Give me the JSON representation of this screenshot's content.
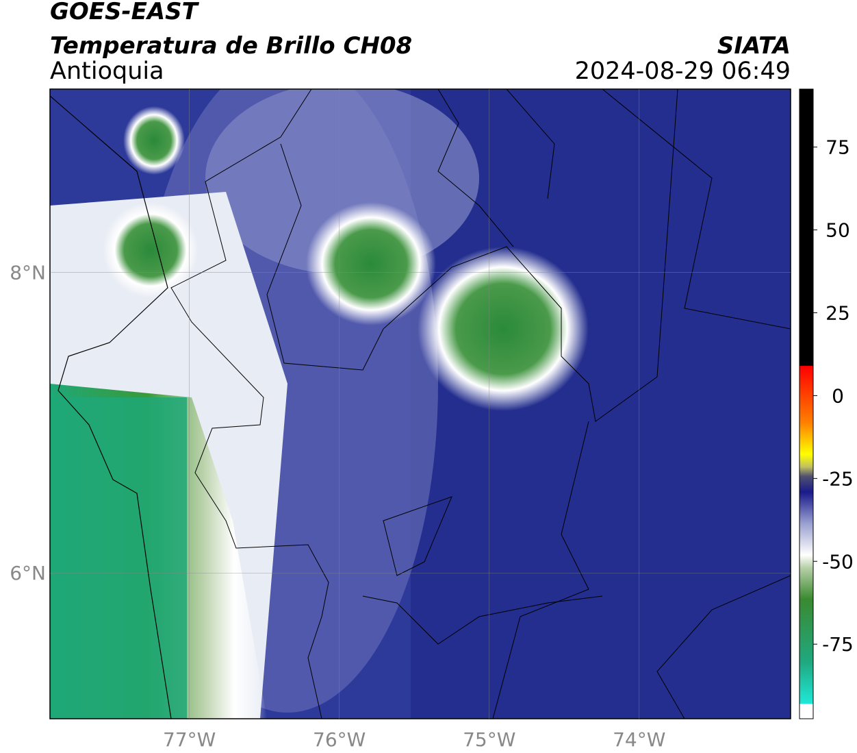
{
  "chart_data": {
    "type": "map",
    "title": "GOES-EAST",
    "subtitle": "Temperatura de Brillo CH08",
    "region": "Antioquia",
    "source": "SIATA",
    "datetime": "2024-08-29 06:49",
    "xlim": [
      -77.93,
      -72.99
    ],
    "ylim": [
      5.03,
      9.22
    ],
    "xticks": [
      {
        "value": -77,
        "label": "77°W"
      },
      {
        "value": -76,
        "label": "76°W"
      },
      {
        "value": -75,
        "label": "75°W"
      },
      {
        "value": -74,
        "label": "74°W"
      }
    ],
    "yticks": [
      {
        "value": 6,
        "label": "6°N"
      },
      {
        "value": 8,
        "label": "8°N"
      }
    ],
    "grid": true,
    "colorbar": {
      "lim": [
        -97.5,
        92.5
      ],
      "ticks": [
        75,
        50,
        25,
        0,
        -25,
        -50,
        -75
      ]
    }
  }
}
